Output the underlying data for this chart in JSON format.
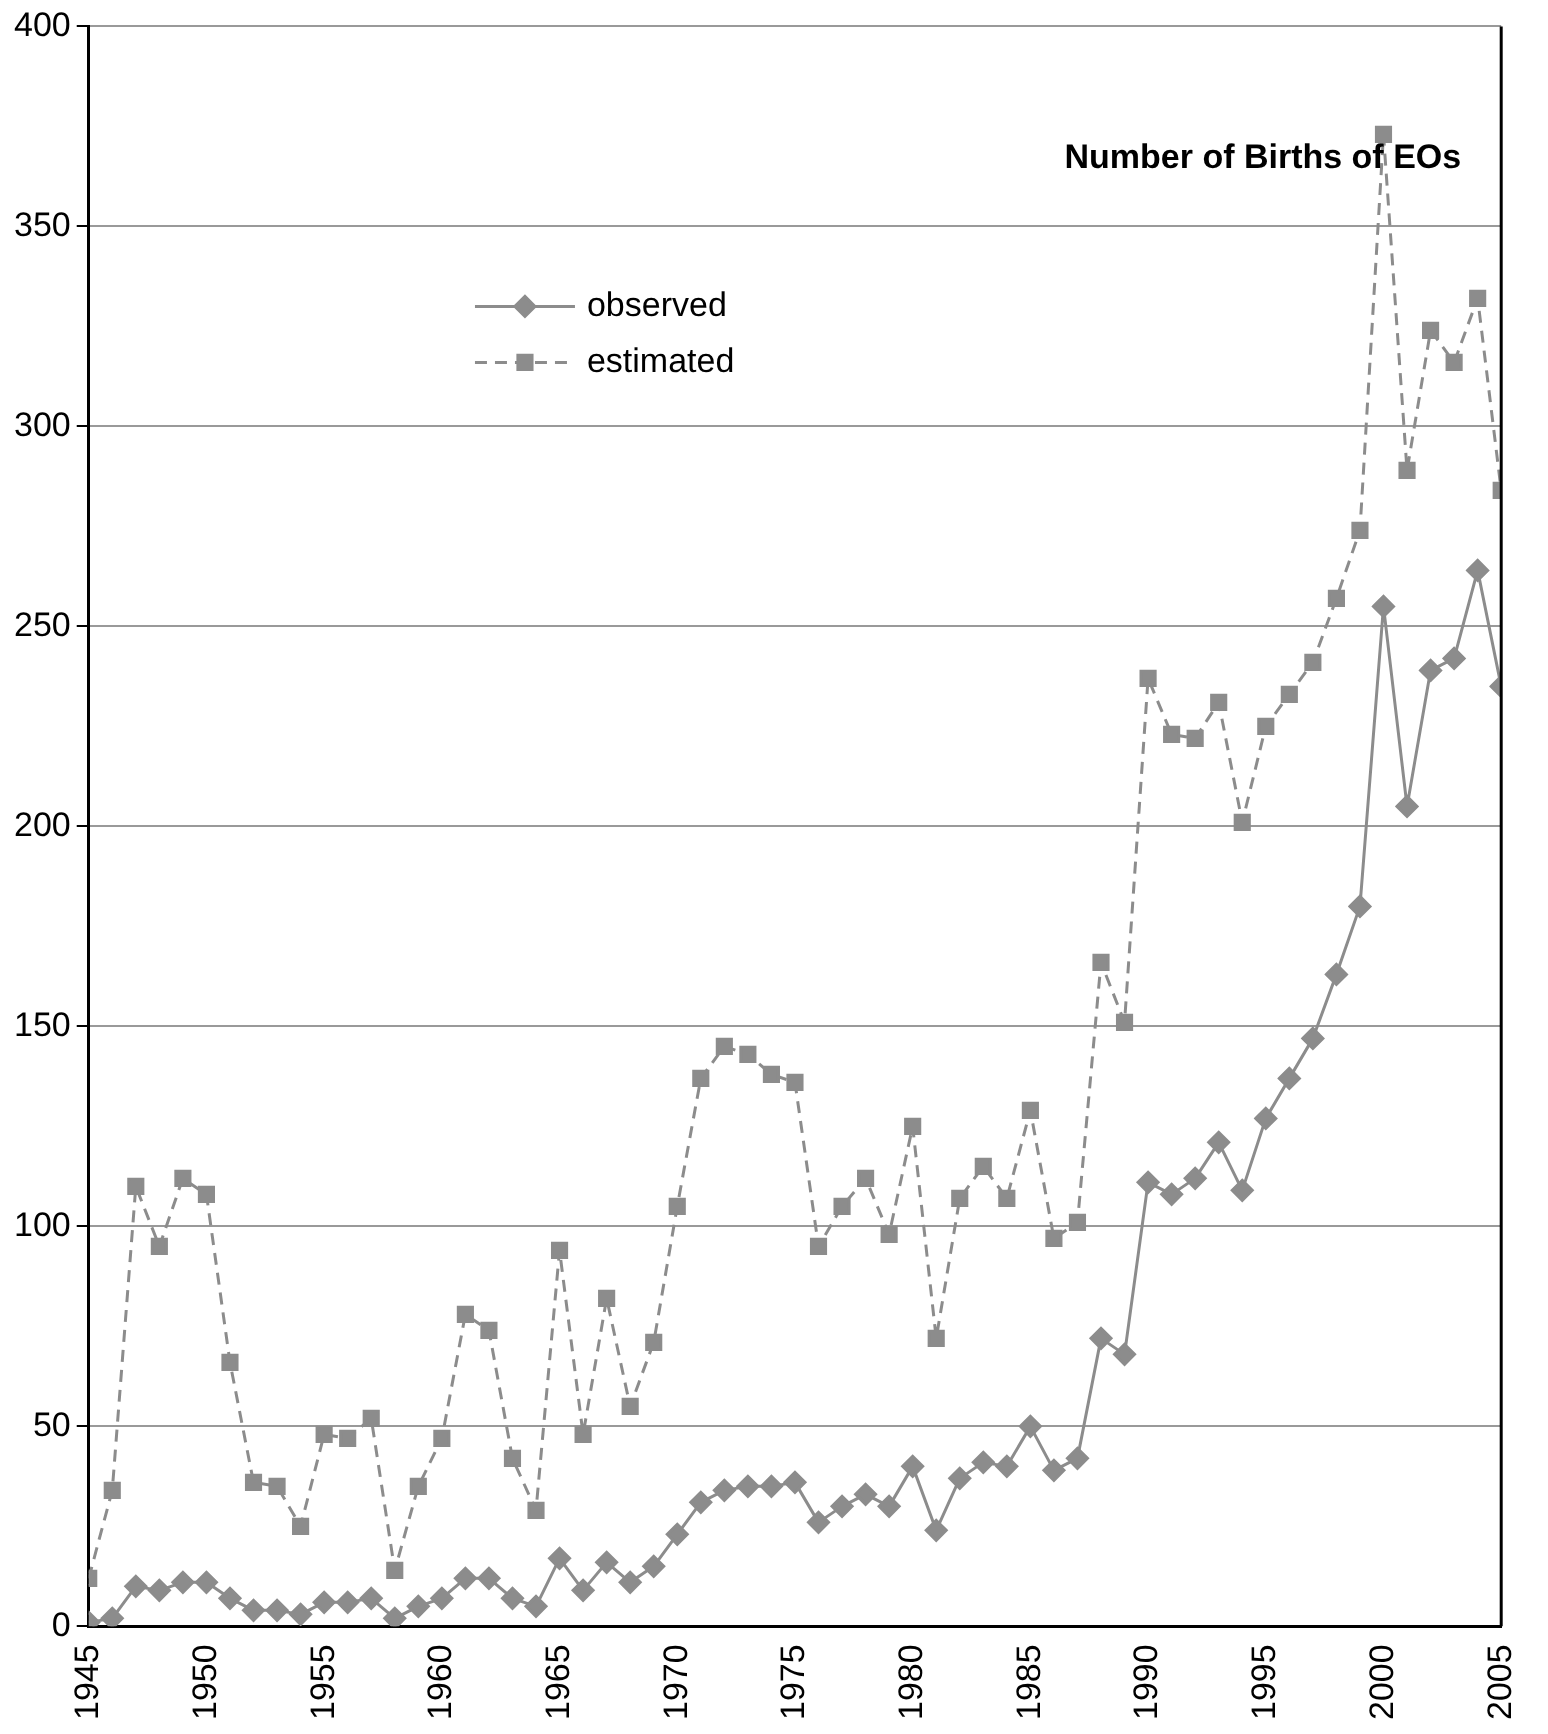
{
  "chart_data": {
    "type": "line",
    "title": "Number of Births of EOs",
    "x": [
      1945,
      1946,
      1947,
      1948,
      1949,
      1950,
      1951,
      1952,
      1953,
      1954,
      1955,
      1956,
      1957,
      1958,
      1959,
      1960,
      1961,
      1962,
      1963,
      1964,
      1965,
      1966,
      1967,
      1968,
      1969,
      1970,
      1971,
      1972,
      1973,
      1974,
      1975,
      1976,
      1977,
      1978,
      1979,
      1980,
      1981,
      1982,
      1983,
      1984,
      1985,
      1986,
      1987,
      1988,
      1989,
      1990,
      1991,
      1992,
      1993,
      1994,
      1995,
      1996,
      1997,
      1998,
      1999,
      2000,
      2001,
      2002,
      2003,
      2004,
      2005
    ],
    "series": [
      {
        "name": "observed",
        "color": "#8c8c8c",
        "marker": "diamond",
        "line_style": "solid",
        "values": [
          1,
          2,
          10,
          9,
          11,
          11,
          7,
          4,
          4,
          3,
          6,
          6,
          7,
          2,
          5,
          7,
          12,
          12,
          7,
          5,
          17,
          9,
          16,
          11,
          15,
          23,
          31,
          34,
          35,
          35,
          36,
          26,
          30,
          33,
          30,
          40,
          24,
          37,
          41,
          40,
          50,
          39,
          42,
          72,
          68,
          111,
          108,
          112,
          121,
          109,
          127,
          137,
          147,
          163,
          180,
          255,
          205,
          239,
          242,
          264,
          235
        ]
      },
      {
        "name": "estimated",
        "color": "#8c8c8c",
        "marker": "square",
        "line_style": "dashed",
        "values": [
          12,
          34,
          110,
          95,
          112,
          108,
          66,
          36,
          35,
          25,
          48,
          47,
          52,
          14,
          35,
          47,
          78,
          74,
          42,
          29,
          94,
          48,
          82,
          55,
          71,
          105,
          137,
          145,
          143,
          138,
          136,
          95,
          105,
          112,
          98,
          125,
          72,
          107,
          115,
          107,
          129,
          97,
          101,
          166,
          151,
          237,
          223,
          222,
          231,
          201,
          225,
          233,
          241,
          257,
          274,
          373,
          289,
          324,
          316,
          332,
          284
        ]
      }
    ],
    "xlim": [
      1945,
      2005
    ],
    "xticks": [
      1945,
      1950,
      1955,
      1960,
      1965,
      1970,
      1975,
      1980,
      1985,
      1990,
      1995,
      2000,
      2005
    ],
    "ylim": [
      0,
      400
    ],
    "yticks": [
      0,
      50,
      100,
      150,
      200,
      250,
      300,
      350,
      400
    ],
    "grid": "y",
    "legend": "top"
  }
}
